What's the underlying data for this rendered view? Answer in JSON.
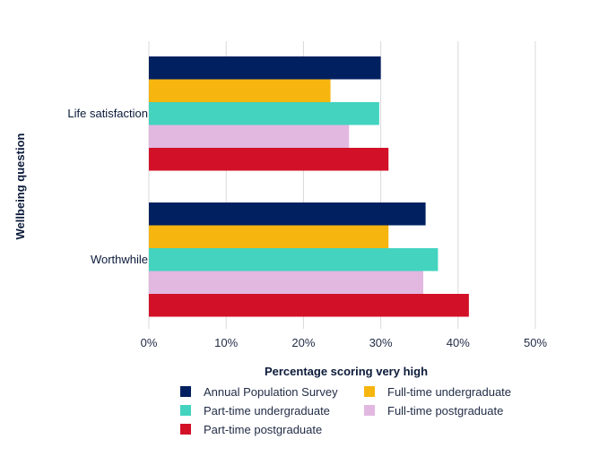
{
  "chart_data": {
    "type": "bar",
    "orientation": "horizontal",
    "categories": [
      "Life satisfaction",
      "Worthwhile"
    ],
    "series": [
      {
        "name": "Annual Population Survey",
        "color": "#002060",
        "values": [
          30,
          35.8
        ]
      },
      {
        "name": "Full-time undergraduate",
        "color": "#F6B50F",
        "values": [
          23.5,
          31
        ]
      },
      {
        "name": "Part-time undergraduate",
        "color": "#43D3BE",
        "values": [
          29.8,
          37.4
        ]
      },
      {
        "name": "Full-time postgraduate",
        "color": "#E2B8E1",
        "values": [
          25.9,
          35.5
        ]
      },
      {
        "name": "Part-time postgraduate",
        "color": "#D21027",
        "values": [
          31,
          41.4
        ]
      }
    ],
    "xlim": [
      0,
      50
    ],
    "xticks": [
      "0%",
      "10%",
      "20%",
      "30%",
      "40%",
      "50%"
    ],
    "xlabel": "Percentage scoring very high",
    "ylabel": "Wellbeing question",
    "grid": "vertical",
    "legend": "bottom"
  }
}
